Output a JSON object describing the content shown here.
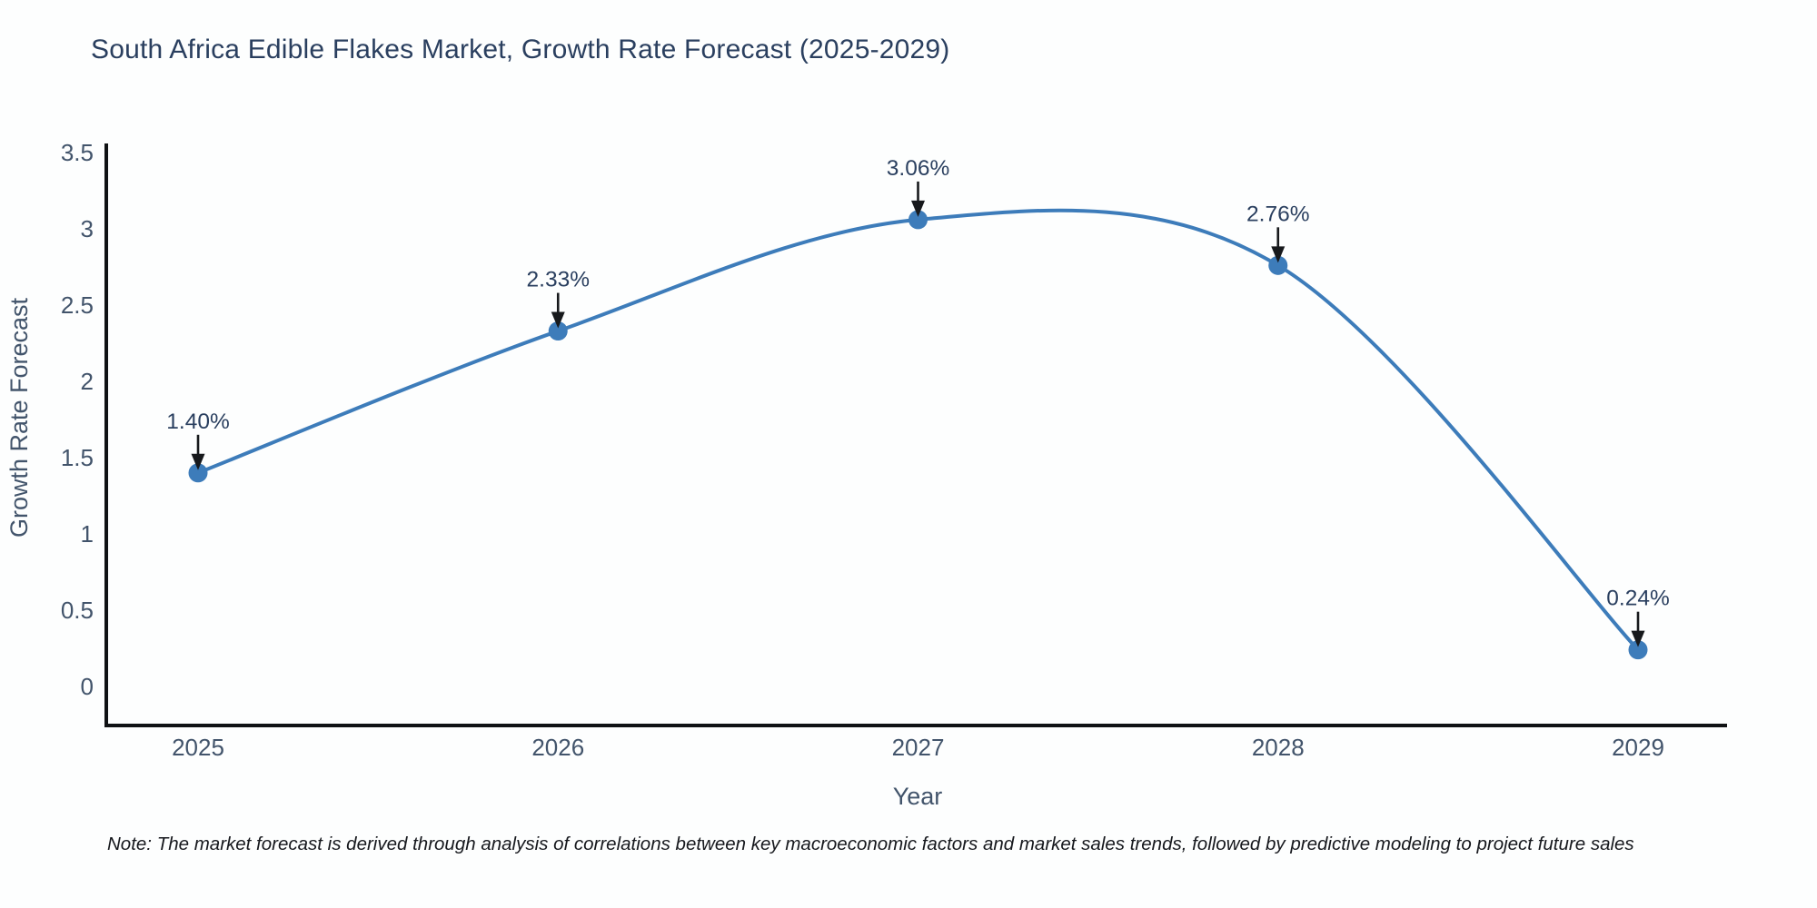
{
  "title": "South Africa Edible Flakes Market, Growth Rate Forecast (2025-2029)",
  "note": "Note: The market forecast is derived through analysis of correlations between key macroeconomic factors and market sales trends, followed by predictive modeling to project future sales",
  "chart_data": {
    "type": "line",
    "line_shape": "spline",
    "title": "South Africa Edible Flakes Market, Growth Rate Forecast (2025-2029)",
    "xlabel": "Year",
    "ylabel": "Growth Rate Forecast",
    "categories": [
      "2025",
      "2026",
      "2027",
      "2028",
      "2029"
    ],
    "values": [
      1.4,
      2.33,
      3.06,
      2.76,
      0.24
    ],
    "point_labels": [
      "1.40%",
      "2.33%",
      "3.06%",
      "2.76%",
      "0.24%"
    ],
    "ylim": [
      0,
      3.5
    ],
    "yticks": [
      "0",
      "0.5",
      "1",
      "1.5",
      "2",
      "2.5",
      "3",
      "3.5"
    ],
    "ytick_values": [
      0,
      0.5,
      1,
      1.5,
      2,
      2.5,
      3,
      3.5
    ],
    "grid": false,
    "legend_position": "none",
    "markers": true,
    "annotations_arrows": true,
    "colors": {
      "line": "#3d7cba",
      "marker": "#3d7cba",
      "axis_line": "#101214",
      "tick_text": "#42546b",
      "axis_title_text": "#42546b",
      "annotation_text": "#2a3f5f",
      "arrow": "#17191c",
      "title_text": "#2a3f5f",
      "background": "#fdfefe"
    }
  }
}
